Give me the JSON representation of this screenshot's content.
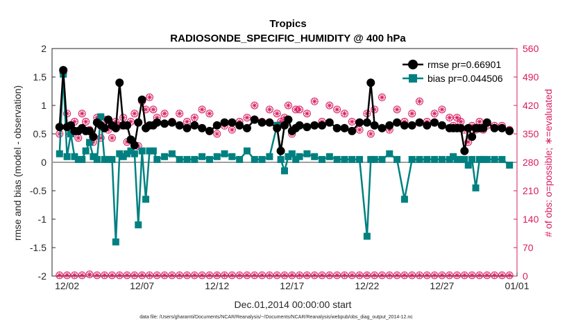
{
  "colors": {
    "rmse": "#000000",
    "bias": "#008080",
    "obs": "#d81b60",
    "zero_line": "#a0a0a0",
    "axis": "#262626"
  },
  "chart_data": {
    "type": "line",
    "title_line1": "Tropics",
    "title_line2": "RADIOSONDE_SPECIFIC_HUMIDITY @ 400 hPa",
    "xlabel": "Dec.01,2014 00:00:00 start",
    "ylabel_left": "rmse and bias (model - observation)",
    "ylabel_right": "# of obs: o=possible; ∗=evaluated",
    "footnote": "data file: /Users/gharamti/Documents/NCAR/Reanalysis/~/Documents/NCAR/Reanalysis/webpub/obs_diag_output_2014-12.nc",
    "xlim": [
      1,
      32
    ],
    "ylim_left": [
      -2,
      2
    ],
    "ylim_right": [
      0,
      560
    ],
    "x_ticks": [
      {
        "x": 2,
        "label": "12/02"
      },
      {
        "x": 7,
        "label": "12/07"
      },
      {
        "x": 12,
        "label": "12/12"
      },
      {
        "x": 17,
        "label": "12/17"
      },
      {
        "x": 22,
        "label": "12/22"
      },
      {
        "x": 27,
        "label": "12/27"
      },
      {
        "x": 32,
        "label": "01/01"
      }
    ],
    "y_ticks_left": [
      "-2",
      "-1.5",
      "-1",
      "-0.5",
      "0",
      "0.5",
      "1",
      "1.5",
      "2"
    ],
    "y_ticks_right": [
      "0",
      "70",
      "140",
      "210",
      "280",
      "350",
      "420",
      "490",
      "560"
    ],
    "legend": {
      "placement": "top-right",
      "entries": [
        {
          "label": "rmse pr=0.66901",
          "series": "rmse"
        },
        {
          "label": "bias pr=0.044506",
          "series": "bias"
        }
      ]
    },
    "series": [
      {
        "name": "rmse",
        "x": [
          1.5,
          1.75,
          2,
          2.25,
          2.5,
          2.75,
          3,
          3.25,
          3.5,
          3.75,
          4,
          4.25,
          4.5,
          4.75,
          5,
          5.25,
          5.5,
          5.75,
          6,
          6.25,
          6.5,
          6.75,
          7,
          7.25,
          7.5,
          7.75,
          8,
          8.5,
          9,
          9.5,
          10,
          10.5,
          11,
          11.5,
          12,
          12.5,
          13,
          13.5,
          14,
          14.5,
          15,
          15.5,
          16,
          16.25,
          16.5,
          16.75,
          17,
          17.25,
          17.5,
          18,
          18.5,
          19,
          19.5,
          20,
          20.5,
          21,
          21.5,
          22,
          22.25,
          22.5,
          23,
          23.5,
          24,
          24.5,
          25,
          25.5,
          26,
          26.5,
          27,
          27.5,
          27.75,
          28,
          28.25,
          28.5,
          28.75,
          29,
          29.25,
          29.5,
          29.75,
          30,
          30.5,
          31,
          31.5
        ],
        "values": [
          0.62,
          1.62,
          0.62,
          0.65,
          0.55,
          0.55,
          0.6,
          0.55,
          0.55,
          0.45,
          0.7,
          0.65,
          0.6,
          0.75,
          0.65,
          0.6,
          1.4,
          0.65,
          0.65,
          0.4,
          0.3,
          0.7,
          1.1,
          0.6,
          0.65,
          0.65,
          0.7,
          0.68,
          0.7,
          0.65,
          0.6,
          0.65,
          0.6,
          0.55,
          0.65,
          0.7,
          0.7,
          0.65,
          0.6,
          0.75,
          0.7,
          0.7,
          0.6,
          0.2,
          0.65,
          0.75,
          0.55,
          0.6,
          0.65,
          0.62,
          0.65,
          0.65,
          0.7,
          0.6,
          0.6,
          0.55,
          0.7,
          0.7,
          1.4,
          0.65,
          0.6,
          0.65,
          0.7,
          0.65,
          0.65,
          0.7,
          0.65,
          0.7,
          0.65,
          0.6,
          0.6,
          0.6,
          0.6,
          0.2,
          0.6,
          0.45,
          0.6,
          0.6,
          0.6,
          0.7,
          0.6,
          0.6,
          0.55
        ]
      },
      {
        "name": "bias",
        "x": [
          1.5,
          1.75,
          2,
          2.25,
          2.5,
          2.75,
          3,
          3.25,
          3.5,
          3.75,
          4,
          4.25,
          4.5,
          4.75,
          5,
          5.25,
          5.5,
          5.75,
          6,
          6.25,
          6.5,
          6.75,
          7,
          7.25,
          7.5,
          7.75,
          8,
          8.5,
          9,
          9.5,
          10,
          10.5,
          11,
          11.5,
          12,
          12.5,
          13,
          13.5,
          14,
          14.5,
          15,
          15.5,
          16,
          16.25,
          16.5,
          16.75,
          17,
          17.25,
          17.5,
          18,
          18.5,
          19,
          19.5,
          20,
          20.5,
          21,
          21.5,
          22,
          22.25,
          22.5,
          23,
          23.5,
          24,
          24.5,
          25,
          25.5,
          26,
          26.5,
          27,
          27.5,
          27.75,
          28,
          28.25,
          28.5,
          28.75,
          29,
          29.25,
          29.5,
          29.75,
          30,
          30.5,
          31,
          31.5
        ],
        "values": [
          0.15,
          1.55,
          0.1,
          0.5,
          0.1,
          0.05,
          0.05,
          0.2,
          0.35,
          0.1,
          0.05,
          0.8,
          0.05,
          0.05,
          0.05,
          -1.4,
          0.15,
          0.1,
          0.15,
          0.2,
          0.15,
          -1.1,
          0.2,
          -0.65,
          0.2,
          0.2,
          0.05,
          0.1,
          0.15,
          0.05,
          0.05,
          0.05,
          0.1,
          0.05,
          0.1,
          0.15,
          0.1,
          0.05,
          0.2,
          0.05,
          0.05,
          0.1,
          0.65,
          0.05,
          -0.15,
          0.1,
          0.15,
          0.05,
          0.1,
          0.15,
          0.1,
          0.05,
          0.1,
          0.05,
          0.05,
          0.05,
          0.05,
          -1.3,
          0.05,
          0.05,
          0.05,
          0.15,
          0.05,
          -0.65,
          0.05,
          0.05,
          0.05,
          0.05,
          0.05,
          0.05,
          0.1,
          0.05,
          0.05,
          0.05,
          -0.05,
          0.05,
          -0.45,
          0.05,
          0.05,
          0.05,
          0.05,
          0.05,
          -0.05
        ]
      },
      {
        "name": "obs_possible",
        "x": [
          1.5,
          1.75,
          2,
          2.25,
          2.5,
          2.75,
          3,
          3.25,
          3.5,
          3.75,
          4,
          4.25,
          4.5,
          4.75,
          5,
          5.25,
          5.5,
          5.75,
          6,
          6.25,
          6.5,
          6.75,
          7,
          7.25,
          7.5,
          7.75,
          8,
          8.5,
          9,
          9.5,
          10,
          10.5,
          11,
          11.5,
          12,
          12.5,
          13,
          13.5,
          14,
          14.5,
          15,
          15.5,
          16,
          16.25,
          16.5,
          16.75,
          17,
          17.25,
          17.5,
          18,
          18.5,
          19,
          19.5,
          20,
          20.5,
          21,
          21.5,
          22,
          22.25,
          22.5,
          23,
          23.5,
          24,
          24.5,
          25,
          25.5,
          26,
          26.5,
          27,
          27.5,
          27.75,
          28,
          28.25,
          28.5,
          28.75,
          29,
          29.25,
          29.5,
          29.75,
          30,
          30.5,
          31,
          31.5
        ],
        "values": [
          350,
          500,
          400,
          350,
          380,
          340,
          400,
          380,
          360,
          330,
          390,
          340,
          385,
          360,
          340,
          380,
          370,
          390,
          330,
          380,
          400,
          320,
          430,
          410,
          440,
          410,
          390,
          400,
          380,
          400,
          380,
          390,
          410,
          400,
          350,
          370,
          360,
          380,
          390,
          420,
          380,
          410,
          400,
          380,
          390,
          420,
          350,
          410,
          410,
          400,
          430,
          380,
          420,
          410,
          400,
          380,
          360,
          400,
          350,
          410,
          440,
          360,
          410,
          380,
          400,
          430,
          380,
          400,
          410,
          390,
          370,
          390,
          380,
          360,
          330,
          370,
          360,
          380,
          360,
          370,
          370,
          370,
          360
        ]
      },
      {
        "name": "obs_evaluated",
        "x": [
          1.5,
          1.75,
          2,
          2.25,
          2.5,
          2.75,
          3,
          3.25,
          3.5,
          3.75,
          4,
          4.25,
          4.5,
          4.75,
          5,
          5.25,
          5.5,
          5.75,
          6,
          6.25,
          6.5,
          6.75,
          7,
          7.25,
          7.5,
          7.75,
          8,
          8.5,
          9,
          9.5,
          10,
          10.5,
          11,
          11.5,
          12,
          12.5,
          13,
          13.5,
          14,
          14.5,
          15,
          15.5,
          16,
          16.25,
          16.5,
          16.75,
          17,
          17.25,
          17.5,
          18,
          18.5,
          19,
          19.5,
          20,
          20.5,
          21,
          21.5,
          22,
          22.25,
          22.5,
          23,
          23.5,
          24,
          24.5,
          25,
          25.5,
          26,
          26.5,
          27,
          27.5,
          27.75,
          28,
          28.25,
          28.5,
          28.75,
          29,
          29.25,
          29.5,
          29.75,
          30,
          30.5,
          31,
          31.5
        ],
        "values": [
          350,
          500,
          400,
          350,
          380,
          340,
          400,
          380,
          360,
          330,
          390,
          340,
          385,
          360,
          340,
          380,
          370,
          390,
          330,
          380,
          400,
          320,
          430,
          410,
          440,
          410,
          390,
          400,
          380,
          400,
          380,
          390,
          410,
          400,
          350,
          370,
          360,
          380,
          390,
          420,
          380,
          410,
          400,
          380,
          390,
          420,
          350,
          410,
          410,
          400,
          430,
          380,
          420,
          410,
          400,
          380,
          360,
          400,
          350,
          410,
          440,
          360,
          410,
          380,
          400,
          430,
          380,
          400,
          410,
          390,
          370,
          390,
          380,
          360,
          330,
          370,
          360,
          380,
          360,
          370,
          370,
          370,
          360
        ]
      },
      {
        "name": "obs_bottom_possible",
        "x": [
          1.5,
          2,
          2.5,
          3,
          3.5,
          4,
          4.5,
          5,
          5.5,
          6,
          6.5,
          7,
          7.5,
          8,
          8.5,
          9,
          9.5,
          10,
          10.5,
          11,
          11.5,
          12,
          12.5,
          13,
          13.5,
          14,
          14.5,
          15,
          15.5,
          16,
          16.5,
          17,
          17.5,
          18,
          18.5,
          19,
          19.5,
          20,
          20.5,
          21,
          21.5,
          22,
          22.5,
          23,
          23.5,
          24,
          24.5,
          25,
          25.5,
          26,
          26.5,
          27,
          27.5,
          28,
          28.5,
          29,
          29.5,
          30,
          30.5,
          31,
          31.5
        ],
        "values": [
          2,
          2,
          2,
          2,
          4,
          2,
          2,
          2,
          2,
          2,
          2,
          2,
          2,
          2,
          2,
          2,
          2,
          2,
          2,
          2,
          2,
          2,
          2,
          2,
          2,
          2,
          2,
          2,
          2,
          2,
          2,
          2,
          2,
          2,
          2,
          2,
          2,
          2,
          2,
          2,
          2,
          2,
          2,
          2,
          2,
          2,
          2,
          2,
          2,
          2,
          2,
          2,
          2,
          2,
          2,
          2,
          2,
          2,
          2,
          2,
          2
        ]
      }
    ]
  }
}
